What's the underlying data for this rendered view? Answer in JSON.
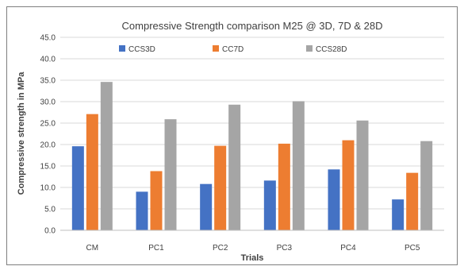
{
  "chart_data": {
    "type": "bar",
    "title": "Compressive Strength  comparison M25 @ 3D, 7D & 28D",
    "xlabel": "Trials",
    "ylabel": "Compressive strength in MPa",
    "categories": [
      "CM",
      "PC1",
      "PC2",
      "PC3",
      "PC4",
      "PC5"
    ],
    "ylim": [
      0,
      45
    ],
    "yticks": [
      "0.0",
      "5.0",
      "10.0",
      "15.0",
      "20.0",
      "25.0",
      "30.0",
      "35.0",
      "40.0",
      "45.0"
    ],
    "grid": "horizontal",
    "legend_position": "top",
    "series": [
      {
        "name": "CCS3D",
        "color": "#4472c4",
        "values": [
          19.6,
          9.0,
          10.8,
          11.6,
          14.2,
          7.2
        ]
      },
      {
        "name": "CC7D",
        "color": "#ed7d31",
        "values": [
          27.1,
          13.8,
          19.7,
          20.2,
          21.0,
          13.4
        ]
      },
      {
        "name": "CCS28D",
        "color": "#a5a5a5",
        "values": [
          34.6,
          25.9,
          29.3,
          30.1,
          25.6,
          20.8
        ]
      }
    ]
  }
}
